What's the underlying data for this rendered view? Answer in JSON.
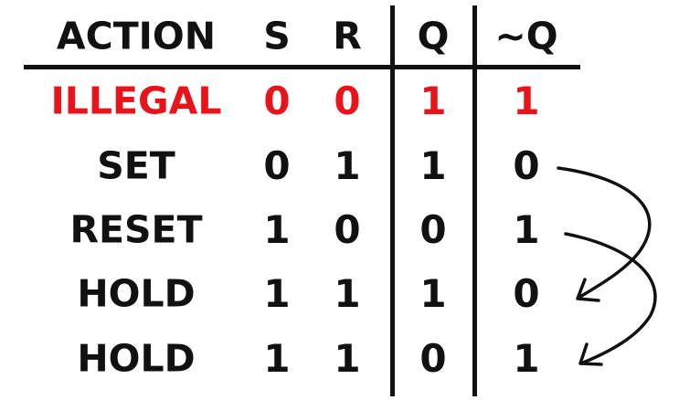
{
  "table": {
    "headers": {
      "action": "ACTION",
      "s": "S",
      "r": "R",
      "q": "Q",
      "nq": "~Q"
    },
    "rows": [
      {
        "action": "ILLEGAL",
        "s": "0",
        "r": "0",
        "q": "1",
        "nq": "1"
      },
      {
        "action": "SET",
        "s": "0",
        "r": "1",
        "q": "1",
        "nq": "0"
      },
      {
        "action": "RESET",
        "s": "1",
        "r": "0",
        "q": "0",
        "nq": "1"
      },
      {
        "action": "HOLD",
        "s": "1",
        "r": "1",
        "q": "1",
        "nq": "0"
      },
      {
        "action": "HOLD",
        "s": "1",
        "r": "1",
        "q": "0",
        "nq": "1"
      }
    ]
  },
  "colors": {
    "illegal": "#e8141b",
    "text": "#111111"
  }
}
